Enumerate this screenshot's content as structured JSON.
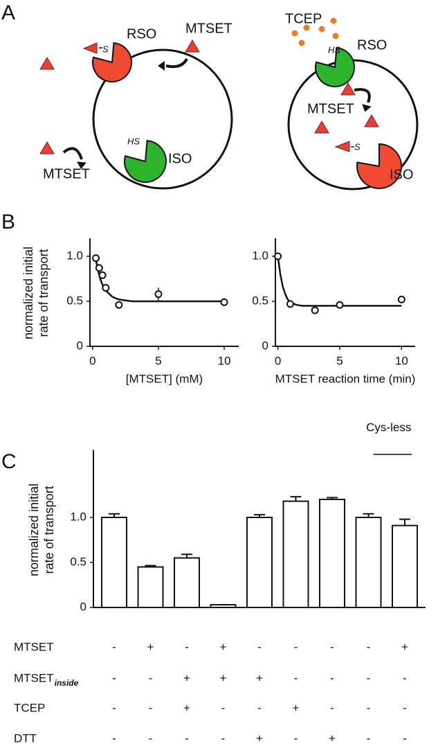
{
  "panels": [
    "A",
    "B",
    "C"
  ],
  "diagram": {
    "left": {
      "rso": "RSO",
      "mtset_out": "MTSET",
      "s": "S",
      "hs": "HS",
      "iso": "ISO",
      "mtset_in": "MTSET"
    },
    "right": {
      "tcep": "TCEP",
      "hs": "HS",
      "rso": "RSO",
      "mtset": "MTSET",
      "s": "S",
      "iso": "ISO"
    }
  },
  "chart_data": [
    {
      "type": "scatter",
      "ylabel": [
        "normalized initial",
        "rate of transport"
      ],
      "xlabel": "[MTSET] (mM)",
      "x": [
        0.25,
        0.5,
        0.75,
        1,
        2,
        5,
        10
      ],
      "values": [
        0.98,
        0.87,
        0.79,
        0.65,
        0.46,
        0.58,
        0.49
      ],
      "errors": [
        0,
        0.04,
        0.04,
        0.02,
        0.03,
        0.07,
        0.03
      ],
      "fit": {
        "x": [
          0.2,
          0.4,
          0.6,
          0.8,
          1,
          1.5,
          2,
          3,
          4,
          6,
          8,
          10
        ],
        "values": [
          1.0,
          0.85,
          0.74,
          0.67,
          0.62,
          0.55,
          0.52,
          0.5,
          0.5,
          0.5,
          0.5,
          0.5
        ]
      },
      "xlim": [
        -0.2,
        11.1
      ],
      "ylim": [
        0,
        1.2
      ],
      "xticks": [
        0,
        5,
        10
      ],
      "yticks": [
        0,
        0.5,
        {
          "value": 1,
          "label": "1.0"
        }
      ]
    },
    {
      "type": "scatter",
      "xlabel": "MTSET reaction time (min)",
      "x": [
        0,
        1,
        3,
        5,
        10
      ],
      "values": [
        1.0,
        0.47,
        0.4,
        0.46,
        0.52
      ],
      "errors": [
        0.02,
        0.04,
        0.02,
        0.02,
        0.02
      ],
      "fit": {
        "x": [
          0,
          0.2,
          0.4,
          0.6,
          0.8,
          1,
          1.5,
          2,
          3,
          5,
          10
        ],
        "values": [
          1.0,
          0.8,
          0.66,
          0.58,
          0.52,
          0.49,
          0.46,
          0.45,
          0.45,
          0.45,
          0.45
        ]
      },
      "xlim": [
        -0.2,
        11.1
      ],
      "ylim": [
        0,
        1.2
      ],
      "xticks": [
        0,
        5,
        10
      ],
      "yticks": [
        0,
        0.5,
        {
          "value": 1,
          "label": "1.0"
        }
      ]
    },
    {
      "type": "bar",
      "ylabel": [
        "normalized initial",
        "rate of transport"
      ],
      "annotation": "Cys-less",
      "categories": [
        null,
        null,
        null,
        null,
        null,
        null,
        null,
        null,
        null
      ],
      "values": [
        1.0,
        0.45,
        0.55,
        0.03,
        1.0,
        1.18,
        1.2,
        1.0,
        0.91
      ],
      "errors": [
        0.04,
        0.015,
        0.04,
        0,
        0.03,
        0.05,
        0.02,
        0.04,
        0.07
      ],
      "ylim": [
        0,
        1.75
      ],
      "yticks": [
        0,
        0.5,
        {
          "value": 1,
          "label": "1.0"
        }
      ],
      "color": "#ffffff"
    }
  ],
  "table": {
    "rows": [
      {
        "label": "MTSET",
        "cells": [
          "-",
          "+",
          "-",
          "+",
          "-",
          "-",
          "-",
          "-",
          "+"
        ]
      },
      {
        "label": "MTSET",
        "subscript": "inside",
        "cells": [
          "-",
          "-",
          "+",
          "+",
          "+",
          "-",
          "-",
          "-",
          "-"
        ]
      },
      {
        "label": "TCEP",
        "cells": [
          "-",
          "-",
          "+",
          "-",
          "-",
          "+",
          "-",
          "-",
          "-"
        ]
      },
      {
        "label": "DTT",
        "cells": [
          "-",
          "-",
          "-",
          "-",
          "+",
          "-",
          "+",
          "-",
          "-"
        ]
      }
    ]
  }
}
